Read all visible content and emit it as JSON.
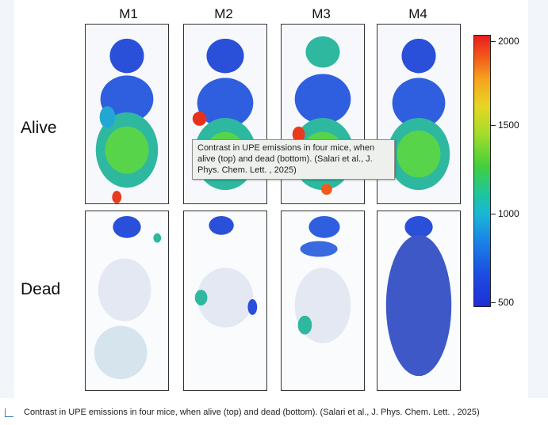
{
  "figure": {
    "columns": [
      "M1",
      "M2",
      "M3",
      "M4"
    ],
    "rows": [
      "Alive",
      "Dead"
    ],
    "colorbar": {
      "ticks": [
        "2000",
        "1500",
        "1000",
        "500"
      ],
      "colors": [
        "#e81d1d",
        "#f7a21e",
        "#a6dd2a",
        "#1ec79a",
        "#1a83e8",
        "#1f2fd6"
      ]
    }
  },
  "tooltip": {
    "text": "Contrast in UPE emissions in four mice, when alive (top) and dead (bottom). (Salari et al., J. Phys. Chem. Lett. , 2025)"
  },
  "caption": {
    "text": "Contrast in UPE emissions in four mice, when alive (top) and dead (bottom). (Salari et al., J. Phys. Chem. Lett. , 2025)"
  }
}
